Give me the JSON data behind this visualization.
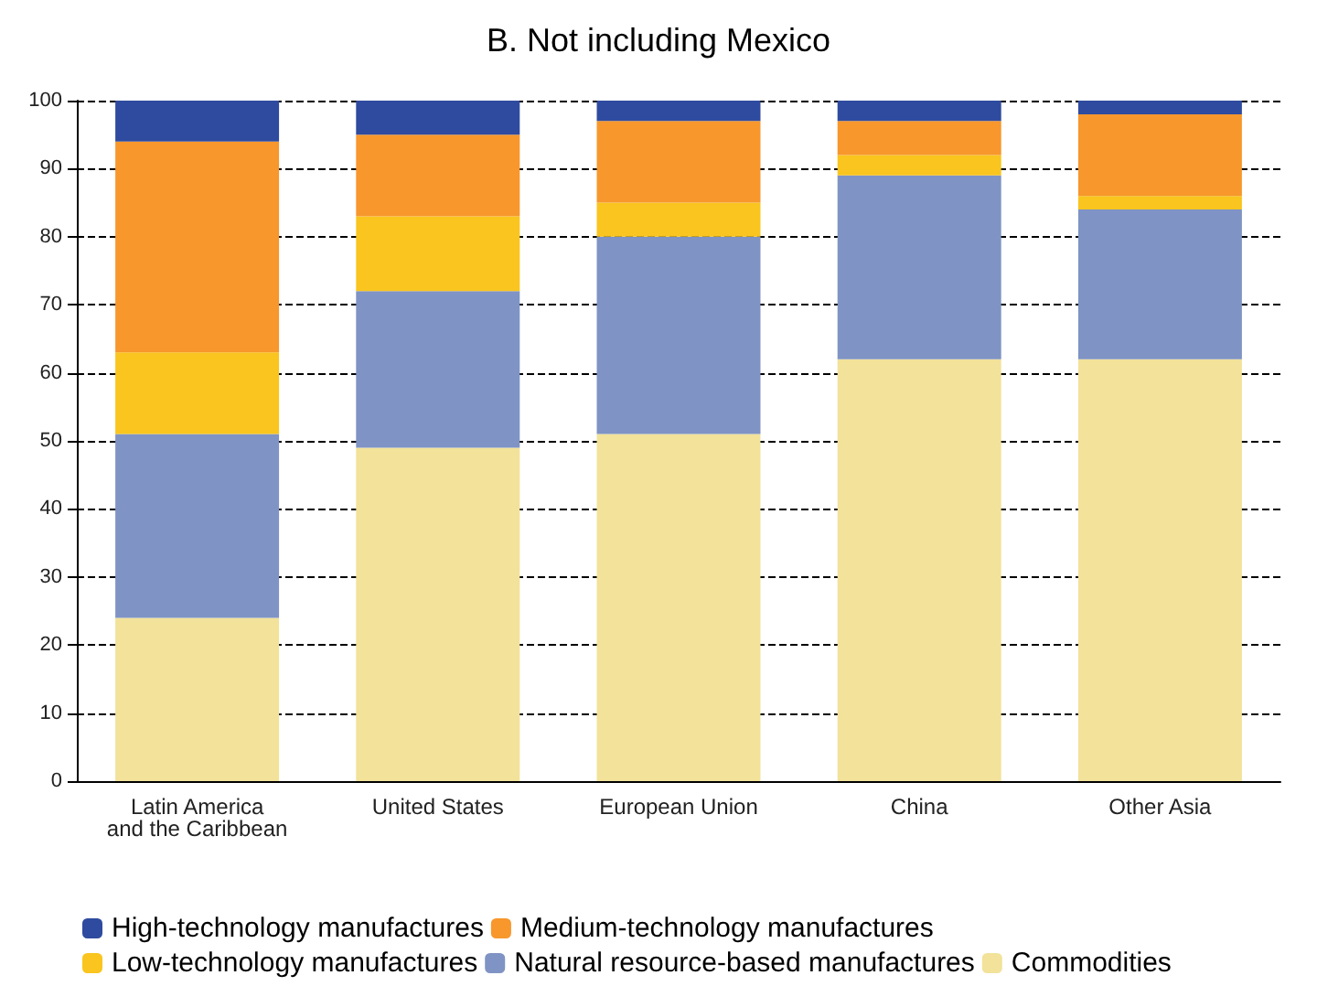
{
  "chart_data": {
    "type": "bar",
    "title": "B. Not including Mexico",
    "stacked": true,
    "categories": [
      "Latin America\nand the Caribbean",
      "United States",
      "European Union",
      "China",
      "Other Asia"
    ],
    "series": [
      {
        "name": "Commodities",
        "color": "#f2e29a",
        "values": [
          24,
          49,
          51,
          62,
          62
        ]
      },
      {
        "name": "Natural resource-based manufactures",
        "color": "#7f93c4",
        "values": [
          27,
          23,
          29,
          27,
          22
        ]
      },
      {
        "name": "Low-technology manufactures",
        "color": "#f9c51e",
        "values": [
          12,
          11,
          5,
          3,
          2
        ]
      },
      {
        "name": "Medium-technology manufactures",
        "color": "#f7972c",
        "values": [
          31,
          12,
          12,
          5,
          12
        ]
      },
      {
        "name": "High-technology manufactures",
        "color": "#2f4b9f",
        "values": [
          6,
          5,
          3,
          3,
          2
        ]
      }
    ],
    "ylim": [
      0,
      100
    ],
    "yticks": [
      0,
      10,
      20,
      30,
      40,
      50,
      60,
      70,
      80,
      90,
      100
    ],
    "grid": "y",
    "legend": "bottom"
  }
}
